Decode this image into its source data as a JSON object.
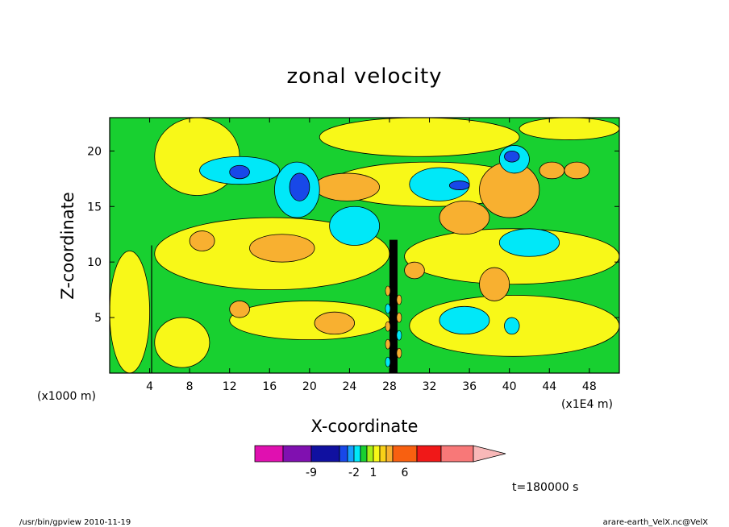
{
  "chart_data": {
    "type": "heatmap",
    "title": "zonal velocity",
    "xlabel": "X-coordinate",
    "ylabel": "Z-coordinate",
    "x_unit_left": "(x1000 m)",
    "x_unit_right": "(x1E4 m)",
    "xlim": [
      0,
      51
    ],
    "ylim": [
      0,
      23
    ],
    "x_ticks": [
      4,
      8,
      12,
      16,
      20,
      24,
      28,
      32,
      36,
      40,
      44,
      48
    ],
    "y_ticks": [
      5,
      10,
      15,
      20
    ],
    "colorbar": {
      "colors": [
        "#e010b0",
        "#8010b0",
        "#1010a0",
        "#1848e8",
        "#18a0ff",
        "#00e8f8",
        "#18d030",
        "#a8f018",
        "#f8f818",
        "#f8d018",
        "#f8b030",
        "#f86010",
        "#f01818",
        "#f87878",
        "#f8b8b8"
      ],
      "labels": [
        {
          "text": "-9",
          "at": -9
        },
        {
          "text": "-2",
          "at": -2
        },
        {
          "text": "1",
          "at": 1
        },
        {
          "text": "6",
          "at": 6
        }
      ]
    },
    "regions": [
      {
        "level": "yellow",
        "x0": 4.5,
        "x1": 13,
        "y0": 16,
        "y1": 23
      },
      {
        "level": "yellow",
        "x0": 21,
        "x1": 41,
        "y0": 19.5,
        "y1": 23
      },
      {
        "level": "yellow",
        "x0": 41,
        "x1": 51,
        "y0": 21,
        "y1": 23
      },
      {
        "level": "yellow",
        "x0": 4.5,
        "x1": 28,
        "y0": 7.5,
        "y1": 14
      },
      {
        "level": "yellow",
        "x0": 29.5,
        "x1": 51,
        "y0": 8,
        "y1": 13
      },
      {
        "level": "yellow",
        "x0": 22,
        "x1": 42,
        "y0": 15,
        "y1": 19
      },
      {
        "level": "yellow",
        "x0": 12,
        "x1": 28,
        "y0": 3,
        "y1": 6.5
      },
      {
        "level": "yellow",
        "x0": 30,
        "x1": 51,
        "y0": 1.5,
        "y1": 7
      },
      {
        "level": "yellow",
        "x0": 0,
        "x1": 4,
        "y0": 0,
        "y1": 11
      },
      {
        "level": "yellow",
        "x0": 4.5,
        "x1": 10,
        "y0": 0.5,
        "y1": 5
      },
      {
        "level": "orange",
        "x0": 20.5,
        "x1": 27,
        "y0": 15.5,
        "y1": 18
      },
      {
        "level": "orange",
        "x0": 33,
        "x1": 38,
        "y0": 12.5,
        "y1": 15.5
      },
      {
        "level": "orange",
        "x0": 37,
        "x1": 43,
        "y0": 14,
        "y1": 19
      },
      {
        "level": "orange",
        "x0": 14,
        "x1": 20.5,
        "y0": 10,
        "y1": 12.5
      },
      {
        "level": "orange",
        "x0": 8,
        "x1": 10.5,
        "y0": 11,
        "y1": 12.8
      },
      {
        "level": "orange",
        "x0": 20.5,
        "x1": 24.5,
        "y0": 3.5,
        "y1": 5.5
      },
      {
        "level": "orange",
        "x0": 37,
        "x1": 40,
        "y0": 6.5,
        "y1": 9.5
      },
      {
        "level": "orange",
        "x0": 43,
        "x1": 45.5,
        "y0": 17.5,
        "y1": 19
      },
      {
        "level": "orange",
        "x0": 45.5,
        "x1": 48,
        "y0": 17.5,
        "y1": 19
      },
      {
        "level": "orange",
        "x0": 12,
        "x1": 14,
        "y0": 5,
        "y1": 6.5
      },
      {
        "level": "orange",
        "x0": 29.5,
        "x1": 31.5,
        "y0": 8.5,
        "y1": 10
      },
      {
        "level": "cyan",
        "x0": 22,
        "x1": 27,
        "y0": 11.5,
        "y1": 15
      },
      {
        "level": "cyan",
        "x0": 9,
        "x1": 17,
        "y0": 17,
        "y1": 19.5
      },
      {
        "level": "cyan",
        "x0": 16.5,
        "x1": 21,
        "y0": 14,
        "y1": 19
      },
      {
        "level": "cyan",
        "x0": 30,
        "x1": 36,
        "y0": 15.5,
        "y1": 18.5
      },
      {
        "level": "cyan",
        "x0": 39,
        "x1": 45,
        "y0": 10.5,
        "y1": 13
      },
      {
        "level": "cyan",
        "x0": 33,
        "x1": 38,
        "y0": 3.5,
        "y1": 6
      },
      {
        "level": "cyan",
        "x0": 39.5,
        "x1": 41,
        "y0": 3.5,
        "y1": 5
      },
      {
        "level": "cyan",
        "x0": 39,
        "x1": 42,
        "y0": 18,
        "y1": 20.5
      },
      {
        "level": "blue",
        "x0": 12,
        "x1": 14,
        "y0": 17.5,
        "y1": 18.7
      },
      {
        "level": "blue",
        "x0": 18,
        "x1": 20,
        "y0": 15.5,
        "y1": 18
      },
      {
        "level": "blue",
        "x0": 34,
        "x1": 36,
        "y0": 16.5,
        "y1": 17.3
      },
      {
        "level": "blue",
        "x0": 39.5,
        "x1": 41,
        "y0": 19,
        "y1": 20
      }
    ]
  },
  "footer": {
    "left": "/usr/bin/gpview 2010-11-19",
    "right": "arare-earth_VelX.nc@VelX"
  },
  "time_label": "t=180000 s",
  "colors": {
    "green": "#18d030",
    "yellow": "#f8f818",
    "orange": "#f8b030",
    "cyan": "#00e8f8",
    "blue": "#1848e8"
  }
}
